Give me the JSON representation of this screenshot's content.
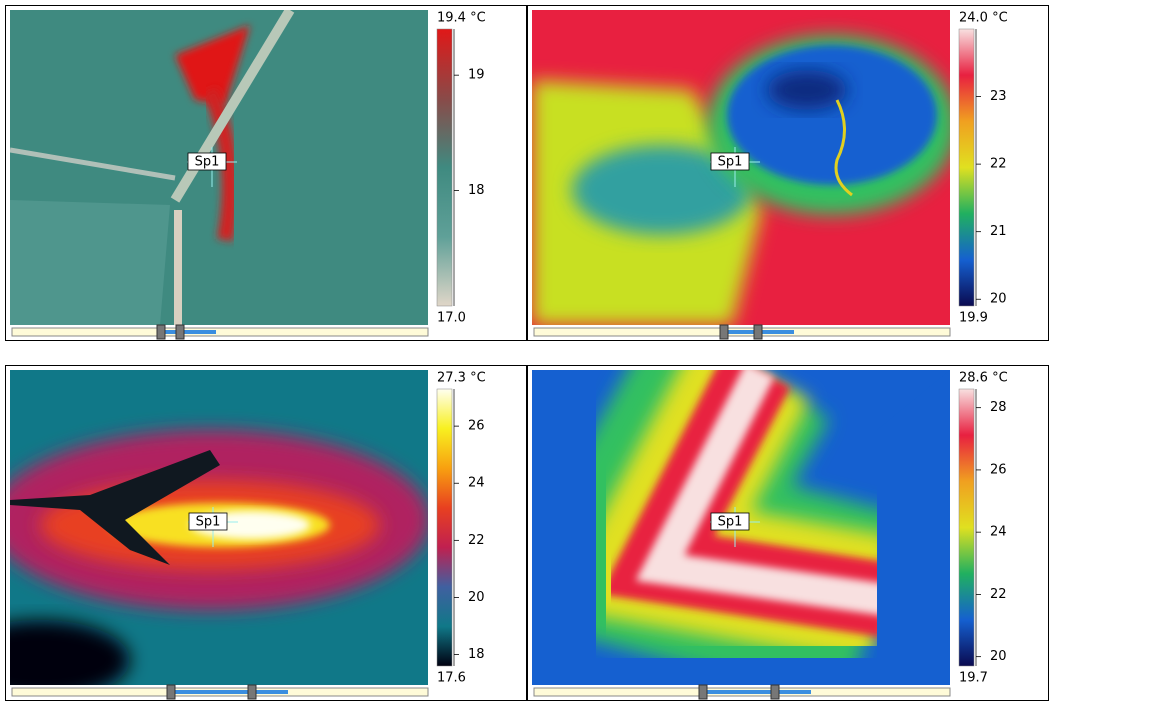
{
  "panels": [
    {
      "scale_max": {
        "value": 19.4,
        "label": "19.4 °C"
      },
      "scale_min": {
        "value": 17.0,
        "label": "17.0"
      },
      "ticks": [
        19,
        18
      ],
      "spot": "Sp1",
      "palette": [
        "#e0d6c8",
        "#5fa098",
        "#3f8a80",
        "#8a4a48",
        "#e01818"
      ]
    },
    {
      "scale_max": {
        "value": 24.0,
        "label": "24.0 °C"
      },
      "scale_min": {
        "value": 19.9,
        "label": "19.9"
      },
      "ticks": [
        23,
        22,
        21,
        20
      ],
      "spot": "Sp1",
      "palette": [
        "#0a0a50",
        "#1560d0",
        "#20b060",
        "#e0e020",
        "#f0a020",
        "#e82040",
        "#f8e0e0"
      ]
    },
    {
      "scale_max": {
        "value": 27.3,
        "label": "27.3 °C"
      },
      "scale_min": {
        "value": 17.6,
        "label": "17.6"
      },
      "ticks": [
        26,
        24,
        22,
        20,
        18
      ],
      "spot": "Sp1",
      "palette": [
        "#000010",
        "#107888",
        "#4060a0",
        "#c02050",
        "#e84020",
        "#f8a010",
        "#f8f020",
        "#fffff0"
      ]
    },
    {
      "scale_max": {
        "value": 28.6,
        "label": "28.6 °C"
      },
      "scale_min": {
        "value": 19.7,
        "label": "19.7"
      },
      "ticks": [
        28,
        26,
        24,
        22,
        20
      ],
      "spot": "Sp1",
      "palette": [
        "#0a0a50",
        "#1560d0",
        "#20b060",
        "#e0e020",
        "#f0a020",
        "#e82040",
        "#f8e0e0"
      ]
    }
  ]
}
